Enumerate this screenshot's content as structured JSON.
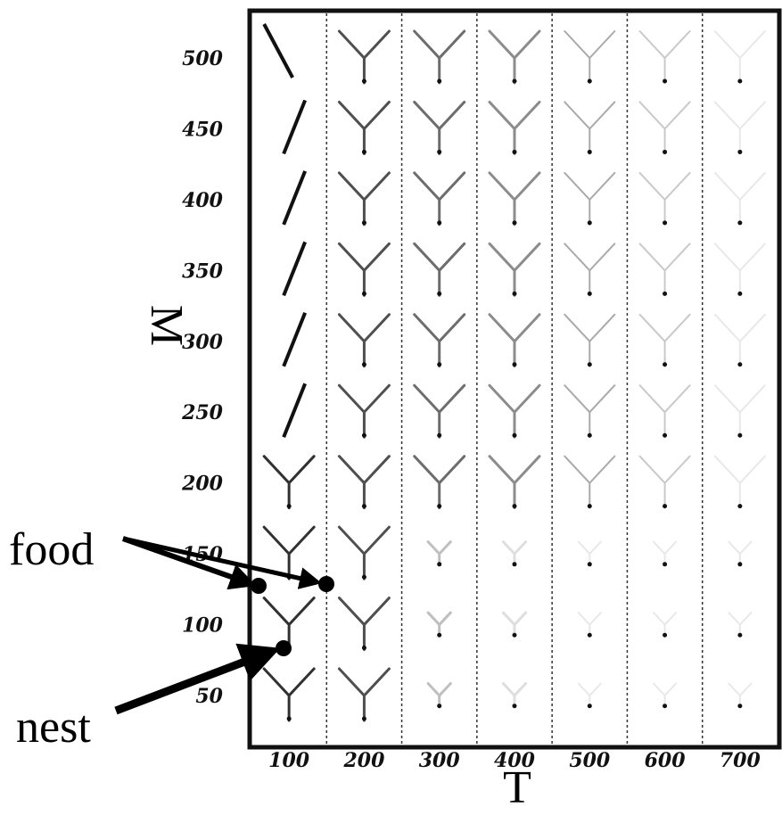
{
  "x_axis": {
    "label": "T",
    "ticks": [
      100,
      200,
      300,
      400,
      500,
      600,
      700
    ]
  },
  "y_axis": {
    "label": "M",
    "ticks": [
      500,
      450,
      400,
      350,
      300,
      250,
      200,
      150,
      100,
      50
    ]
  },
  "annotations": [
    {
      "label": "food"
    },
    {
      "label": "nest"
    }
  ]
}
